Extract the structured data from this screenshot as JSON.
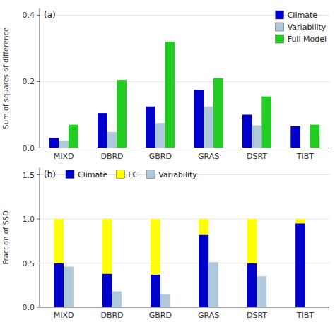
{
  "chart_data": [
    {
      "type": "bar",
      "categories": [
        "MIXD",
        "DBRD",
        "GBRD",
        "GRAS",
        "DSRT",
        "TIBT"
      ],
      "series": [
        {
          "name": "Climate",
          "color": "#0000cd",
          "values": [
            0.03,
            0.105,
            0.125,
            0.175,
            0.1,
            0.065
          ]
        },
        {
          "name": "Variability",
          "color": "#b0c8dc",
          "values": [
            0.022,
            0.048,
            0.075,
            0.125,
            0.068,
            0.0
          ]
        },
        {
          "name": "Full Model",
          "color": "#22cc22",
          "values": [
            0.07,
            0.205,
            0.32,
            0.21,
            0.155,
            0.07
          ]
        }
      ],
      "y_label": "Sum of squares of difference",
      "ylim": [
        0,
        0.42
      ],
      "yticks": [
        {
          "value": 0.0,
          "label": "0.0"
        },
        0.2,
        0.4
      ],
      "annotations": [
        "(a)"
      ],
      "legend": "upper right"
    },
    {
      "type": "bar",
      "categories": [
        "MIXD",
        "DBRD",
        "GBRD",
        "GRAS",
        "DSRT",
        "TIBT"
      ],
      "series": [
        {
          "name": "Climate",
          "color": "#0000cd",
          "stacked": true,
          "values": [
            0.5,
            0.38,
            0.37,
            0.82,
            0.5,
            0.95
          ]
        },
        {
          "name": "LC",
          "color": "#ffff00",
          "stacked": true,
          "values": [
            0.5,
            0.62,
            0.63,
            0.18,
            0.5,
            0.05
          ]
        },
        {
          "name": "Variability",
          "color": "#b0c8dc",
          "stacked": false,
          "values": [
            0.46,
            0.18,
            0.15,
            0.51,
            0.35,
            0.0
          ]
        }
      ],
      "y_label": "Fraction of SSD",
      "ylim": [
        0,
        1.58
      ],
      "yticks": [
        {
          "value": 0.0,
          "label": "0.0"
        },
        0.5,
        {
          "value": 1.0,
          "label": "1.0"
        },
        1.5
      ],
      "annotations": [
        "(b)"
      ],
      "legend": "upper left"
    }
  ]
}
